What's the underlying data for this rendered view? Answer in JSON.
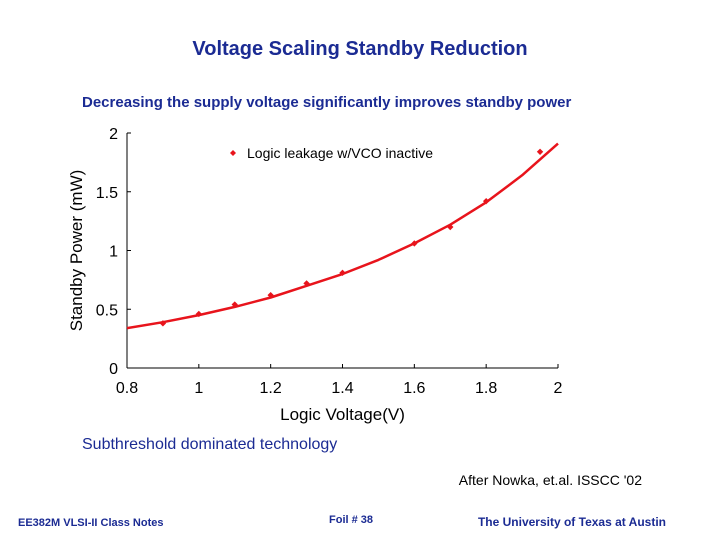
{
  "slide": {
    "title": "Voltage Scaling Standby Reduction",
    "subtitle": "Decreasing the supply voltage significantly improves standby power",
    "caption": "Subthreshold dominated technology",
    "credit": "After Nowka, et.al. ISSCC '02"
  },
  "footer": {
    "left": "EE382M VLSI-II Class Notes",
    "center": "Foil # 38",
    "right": "The University of Texas at Austin"
  },
  "colors": {
    "title_text": "#1b2b93",
    "series": "#e8141c",
    "axis": "#000000"
  },
  "chart_data": {
    "type": "line",
    "xlabel": "Logic Voltage(V)",
    "ylabel": "Standby Power (mW)",
    "xlim": [
      0.8,
      2.0
    ],
    "ylim": [
      0,
      2.0
    ],
    "xticks": [
      "0.8",
      "1",
      "1.2",
      "1.4",
      "1.6",
      "1.8",
      "2"
    ],
    "yticks": [
      "0",
      "0.5",
      "1",
      "1.5",
      "2"
    ],
    "grid": false,
    "legend_position": "top",
    "series": [
      {
        "name": "Logic leakage w/VCO inactive",
        "color": "#e8141c",
        "marker": "diamond",
        "points": [
          {
            "x": 0.9,
            "y": 0.38
          },
          {
            "x": 1.0,
            "y": 0.46
          },
          {
            "x": 1.1,
            "y": 0.54
          },
          {
            "x": 1.2,
            "y": 0.62
          },
          {
            "x": 1.3,
            "y": 0.72
          },
          {
            "x": 1.4,
            "y": 0.81
          },
          {
            "x": 1.6,
            "y": 1.06
          },
          {
            "x": 1.7,
            "y": 1.2
          },
          {
            "x": 1.8,
            "y": 1.42
          },
          {
            "x": 1.95,
            "y": 1.84
          }
        ],
        "fit": [
          {
            "x": 0.8,
            "y": 0.34
          },
          {
            "x": 0.9,
            "y": 0.39
          },
          {
            "x": 1.0,
            "y": 0.45
          },
          {
            "x": 1.1,
            "y": 0.52
          },
          {
            "x": 1.2,
            "y": 0.6
          },
          {
            "x": 1.3,
            "y": 0.7
          },
          {
            "x": 1.4,
            "y": 0.8
          },
          {
            "x": 1.5,
            "y": 0.92
          },
          {
            "x": 1.6,
            "y": 1.06
          },
          {
            "x": 1.7,
            "y": 1.22
          },
          {
            "x": 1.8,
            "y": 1.41
          },
          {
            "x": 1.9,
            "y": 1.64
          },
          {
            "x": 2.0,
            "y": 1.91
          }
        ]
      }
    ]
  }
}
